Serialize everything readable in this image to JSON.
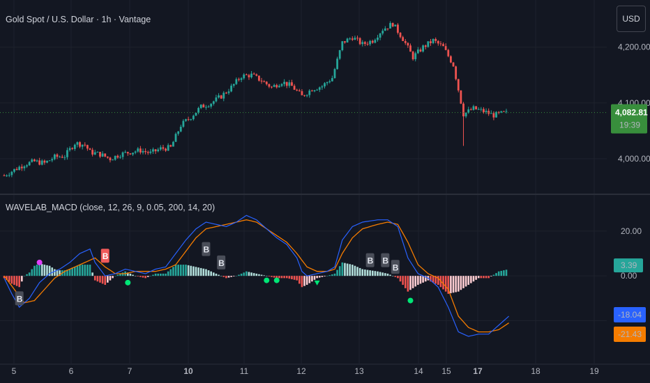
{
  "header": {
    "symbol_title": "Gold Spot / U.S. Dollar · 1h · Vantage",
    "currency_button": "USD",
    "indicator_title": "WAVELAB_MACD (close, 12, 26, 9, 0.05, 200, 14, 20)"
  },
  "colors": {
    "background": "#131722",
    "up_candle": "#26a69a",
    "down_candle": "#ef5350",
    "macd_line": "#2962ff",
    "signal_line": "#f57c00",
    "hist_pos_strong": "#26a69a",
    "hist_pos_weak": "#b2dfdb",
    "hist_neg_strong": "#ef5350",
    "hist_neg_weak": "#ffcdd2",
    "last_price_badge": "#388e3c",
    "hist_badge": "#26a69a"
  },
  "chart_data": [
    {
      "type": "candlestick",
      "title": "Gold Spot / U.S. Dollar · 1h · Vantage",
      "currency": "USD",
      "y_ticks": [
        "4,200.00",
        "4,100.00",
        "4,000.00"
      ],
      "y_tick_values": [
        4200,
        4100,
        4000
      ],
      "last_price": "4,082.81",
      "countdown": "19:39",
      "x_ticks": [
        "5",
        "6",
        "7",
        "10",
        "11",
        "12",
        "13",
        "14",
        "15",
        "17",
        "18",
        "19"
      ],
      "close_path": [
        [
          0,
          3970
        ],
        [
          4,
          3980
        ],
        [
          8,
          3990
        ],
        [
          12,
          3995
        ],
        [
          16,
          3992
        ],
        [
          20,
          4003
        ],
        [
          24,
          4005
        ],
        [
          28,
          4028
        ],
        [
          32,
          4025
        ],
        [
          34,
          4012
        ],
        [
          38,
          4008
        ],
        [
          42,
          4000
        ],
        [
          46,
          4008
        ],
        [
          50,
          4012
        ],
        [
          54,
          4015
        ],
        [
          58,
          4010
        ],
        [
          62,
          4018
        ],
        [
          66,
          4020
        ],
        [
          70,
          4060
        ],
        [
          74,
          4075
        ],
        [
          78,
          4093
        ],
        [
          82,
          4100
        ],
        [
          86,
          4112
        ],
        [
          90,
          4128
        ],
        [
          94,
          4148
        ],
        [
          98,
          4150
        ],
        [
          102,
          4140
        ],
        [
          106,
          4128
        ],
        [
          110,
          4138
        ],
        [
          114,
          4130
        ],
        [
          118,
          4112
        ],
        [
          122,
          4125
        ],
        [
          126,
          4130
        ],
        [
          130,
          4145
        ],
        [
          134,
          4208
        ],
        [
          138,
          4218
        ],
        [
          142,
          4205
        ],
        [
          146,
          4212
        ],
        [
          150,
          4232
        ],
        [
          154,
          4242
        ],
        [
          158,
          4215
        ],
        [
          162,
          4182
        ],
        [
          166,
          4200
        ],
        [
          170,
          4212
        ],
        [
          174,
          4200
        ],
        [
          178,
          4168
        ],
        [
          182,
          4080
        ],
        [
          186,
          4090
        ],
        [
          190,
          4085
        ],
        [
          194,
          4078
        ],
        [
          198,
          4082
        ]
      ],
      "candle_count": 200
    },
    {
      "type": "macd",
      "title": "WAVELAB_MACD (close, 12, 26, 9, 0.05, 200, 14, 20)",
      "y_ticks": [
        "20.00",
        "0.00"
      ],
      "y_tick_values": [
        20,
        0
      ],
      "last_values": {
        "histogram": "3.39",
        "macd": "-18.04",
        "signal": "-21.43"
      },
      "series": [
        {
          "key": "macd",
          "points": [
            [
              0,
              -1
            ],
            [
              3,
              -8
            ],
            [
              6,
              -14
            ],
            [
              10,
              -10
            ],
            [
              14,
              -3
            ],
            [
              18,
              1
            ],
            [
              22,
              3
            ],
            [
              26,
              6
            ],
            [
              30,
              10
            ],
            [
              34,
              12
            ],
            [
              36,
              6
            ],
            [
              40,
              0
            ],
            [
              44,
              1
            ],
            [
              48,
              3
            ],
            [
              52,
              2
            ],
            [
              56,
              1
            ],
            [
              60,
              3
            ],
            [
              64,
              4
            ],
            [
              68,
              10
            ],
            [
              72,
              16
            ],
            [
              76,
              21
            ],
            [
              80,
              24
            ],
            [
              84,
              23
            ],
            [
              88,
              22
            ],
            [
              92,
              24
            ],
            [
              96,
              27
            ],
            [
              100,
              25
            ],
            [
              104,
              21
            ],
            [
              108,
              17
            ],
            [
              112,
              14
            ],
            [
              116,
              8
            ],
            [
              118,
              2
            ],
            [
              120,
              0
            ],
            [
              124,
              1
            ],
            [
              128,
              2
            ],
            [
              131,
              4
            ],
            [
              134,
              16
            ],
            [
              138,
              22
            ],
            [
              142,
              24
            ],
            [
              148,
              25
            ],
            [
              152,
              25
            ],
            [
              156,
              22
            ],
            [
              160,
              8
            ],
            [
              164,
              1
            ],
            [
              168,
              -1
            ],
            [
              172,
              -5
            ],
            [
              176,
              -14
            ],
            [
              180,
              -25
            ],
            [
              184,
              -27
            ],
            [
              188,
              -26
            ],
            [
              192,
              -26
            ],
            [
              196,
              -22
            ],
            [
              200,
              -18
            ]
          ]
        },
        {
          "key": "signal",
          "points": [
            [
              0,
              0
            ],
            [
              4,
              -6
            ],
            [
              8,
              -12
            ],
            [
              12,
              -11
            ],
            [
              16,
              -6
            ],
            [
              20,
              -1
            ],
            [
              24,
              2
            ],
            [
              28,
              4
            ],
            [
              32,
              6
            ],
            [
              36,
              8
            ],
            [
              40,
              4
            ],
            [
              44,
              1
            ],
            [
              48,
              1
            ],
            [
              52,
              2
            ],
            [
              56,
              2
            ],
            [
              60,
              2
            ],
            [
              64,
              3
            ],
            [
              68,
              5
            ],
            [
              72,
              11
            ],
            [
              76,
              17
            ],
            [
              80,
              21
            ],
            [
              84,
              22
            ],
            [
              88,
              23
            ],
            [
              92,
              24
            ],
            [
              96,
              25
            ],
            [
              100,
              24
            ],
            [
              104,
              21
            ],
            [
              108,
              18
            ],
            [
              112,
              15
            ],
            [
              116,
              10
            ],
            [
              120,
              4
            ],
            [
              124,
              2
            ],
            [
              128,
              2
            ],
            [
              131,
              3
            ],
            [
              134,
              10
            ],
            [
              138,
              17
            ],
            [
              142,
              21
            ],
            [
              148,
              23
            ],
            [
              152,
              24
            ],
            [
              156,
              23
            ],
            [
              160,
              15
            ],
            [
              164,
              5
            ],
            [
              168,
              1
            ],
            [
              172,
              -1
            ],
            [
              176,
              -6
            ],
            [
              180,
              -18
            ],
            [
              184,
              -23
            ],
            [
              188,
              -25
            ],
            [
              192,
              -25
            ],
            [
              196,
              -24
            ],
            [
              200,
              -21
            ]
          ]
        }
      ],
      "buy_labels": [
        {
          "text": "B",
          "bar": 6,
          "value": -10
        },
        {
          "text": "B",
          "bar": 80,
          "value": 12
        },
        {
          "text": "B",
          "bar": 86,
          "value": 6
        },
        {
          "text": "B",
          "bar": 145,
          "value": 7
        },
        {
          "text": "B",
          "bar": 151,
          "value": 7
        },
        {
          "text": "B",
          "bar": 155,
          "value": 4
        }
      ],
      "sell_labels": [
        {
          "text": "B",
          "bar": 40,
          "value": 9
        }
      ],
      "dots": [
        {
          "bar": 14,
          "value": 6,
          "color": "#e040fb"
        },
        {
          "bar": 49,
          "value": -3,
          "color": "#00e676"
        },
        {
          "bar": 104,
          "value": -2,
          "color": "#00e676"
        },
        {
          "bar": 108,
          "value": -2,
          "color": "#00e676"
        },
        {
          "bar": 161,
          "value": -11,
          "color": "#00e676"
        }
      ],
      "triangles": [
        {
          "bar": 124,
          "value": -3,
          "color": "#00e676"
        }
      ]
    }
  ]
}
